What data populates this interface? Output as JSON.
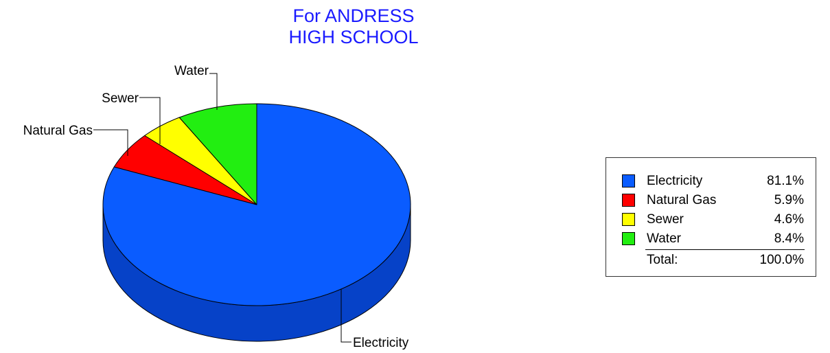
{
  "chart_data": {
    "type": "pie",
    "title_lines": [
      "For ANDRESS",
      "HIGH SCHOOL"
    ],
    "slices": [
      {
        "label": "Electricity",
        "value": 81.1,
        "display": "81.1%",
        "color": "#0a5cff",
        "side_color": "#0642c8"
      },
      {
        "label": "Natural Gas",
        "value": 5.9,
        "display": "5.9%",
        "color": "#ff0000",
        "side_color": "#c80000"
      },
      {
        "label": "Sewer",
        "value": 4.6,
        "display": "4.6%",
        "color": "#ffff00",
        "side_color": "#c8c800"
      },
      {
        "label": "Water",
        "value": 8.4,
        "display": "8.4%",
        "color": "#22ee11",
        "side_color": "#18b80c"
      }
    ],
    "total_label": "Total:",
    "total_value": "100.0%",
    "legend_placement": "right",
    "title_color": "#1a1aff"
  }
}
